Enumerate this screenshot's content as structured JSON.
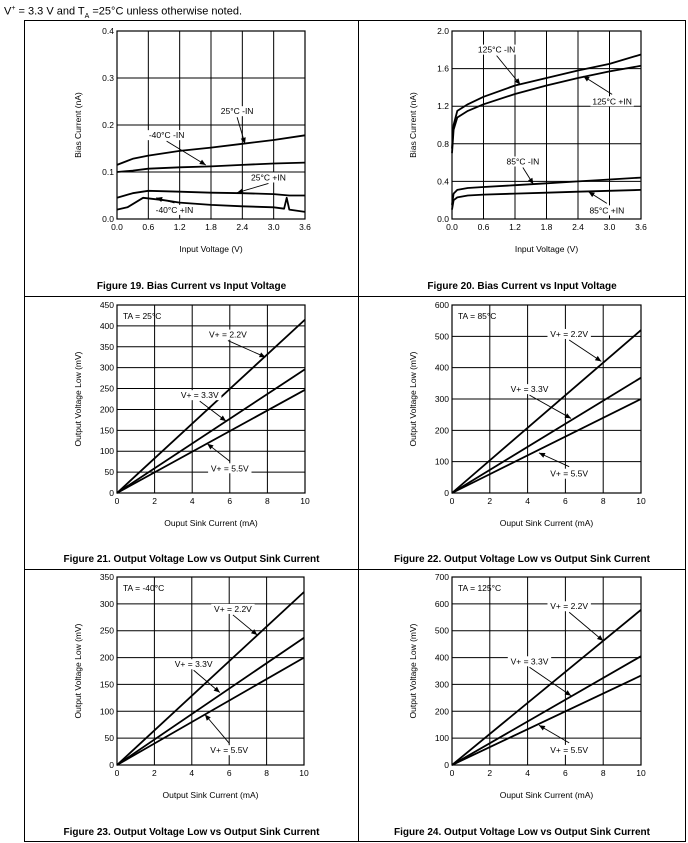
{
  "header": {
    "prefix": "V",
    "sup": "+",
    "mid": " = 3.3 V and T",
    "sub": "A",
    "suffix": " =25°C unless otherwise noted."
  },
  "charts": [
    {
      "id": "fig19",
      "caption": "Figure 19. Bias Current vs Input Voltage",
      "chart_data": {
        "type": "line",
        "title": "",
        "xlabel": "Input Voltage (V)",
        "ylabel": "Bias Current (nA)",
        "xlim": [
          0,
          3.6
        ],
        "ylim": [
          0,
          0.4
        ],
        "xticks": [
          0,
          0.6,
          1.2,
          1.8,
          2.4,
          3.0,
          3.6
        ],
        "xtick_labels": [
          "0.0",
          "0.6",
          "1.2",
          "1.8",
          "2.4",
          "3.0",
          "3.6"
        ],
        "yticks": [
          0,
          0.1,
          0.2,
          0.3,
          0.4
        ],
        "ytick_labels": [
          "0.0",
          "0.1",
          "0.2",
          "0.3",
          "0.4"
        ],
        "grid": true,
        "series": [
          {
            "name": "25°C -IN",
            "x": [
              0,
              0.3,
              0.6,
              1.2,
              1.8,
              2.4,
              3.0,
              3.6
            ],
            "y": [
              0.115,
              0.128,
              0.135,
              0.145,
              0.152,
              0.16,
              0.168,
              0.178
            ]
          },
          {
            "name": "-40°C -IN",
            "x": [
              0,
              0.3,
              0.6,
              1.2,
              1.8,
              2.4,
              3.0,
              3.6
            ],
            "y": [
              0.1,
              0.103,
              0.107,
              0.11,
              0.112,
              0.115,
              0.118,
              0.12
            ]
          },
          {
            "name": "25°C +IN",
            "x": [
              0,
              0.3,
              0.6,
              1.2,
              1.8,
              2.4,
              3.0,
              3.3,
              3.6
            ],
            "y": [
              0.045,
              0.055,
              0.06,
              0.058,
              0.056,
              0.055,
              0.053,
              0.05,
              0.05
            ]
          },
          {
            "name": "-40°C +IN",
            "x": [
              0,
              0.2,
              0.5,
              0.9,
              1.2,
              1.8,
              2.4,
              3.0,
              3.2,
              3.25,
              3.3,
              3.6
            ],
            "y": [
              0.02,
              0.025,
              0.045,
              0.04,
              0.035,
              0.03,
              0.027,
              0.025,
              0.022,
              0.045,
              0.02,
              0.015
            ]
          }
        ],
        "annotations": [
          {
            "text": "25°C -IN",
            "x": 2.3,
            "y": 0.223,
            "ax": 2.45,
            "ay": 0.16
          },
          {
            "text": "-40°C -IN",
            "x": 0.95,
            "y": 0.172,
            "ax": 1.7,
            "ay": 0.115
          },
          {
            "text": "25°C +IN",
            "x": 2.9,
            "y": 0.082,
            "ax": 2.3,
            "ay": 0.056
          },
          {
            "text": "-40°C +IN",
            "x": 1.1,
            "y": 0.013,
            "ax": 0.75,
            "ay": 0.045
          }
        ]
      }
    },
    {
      "id": "fig20",
      "caption": "Figure 20. Bias Current vs Input Voltage",
      "chart_data": {
        "type": "line",
        "title": "",
        "xlabel": "Input Voltage (V)",
        "ylabel": "Bias Current (nA)",
        "xlim": [
          0,
          3.6
        ],
        "ylim": [
          0,
          2.0
        ],
        "xticks": [
          0,
          0.6,
          1.2,
          1.8,
          2.4,
          3.0,
          3.6
        ],
        "xtick_labels": [
          "0.0",
          "0.6",
          "1.2",
          "1.8",
          "2.4",
          "3.0",
          "3.6"
        ],
        "yticks": [
          0,
          0.4,
          0.8,
          1.2,
          1.6,
          2.0
        ],
        "ytick_labels": [
          "0.0",
          "0.4",
          "0.8",
          "1.2",
          "1.6",
          "2.0"
        ],
        "grid": true,
        "series": [
          {
            "name": "125°C -IN",
            "x": [
              0,
              0.03,
              0.1,
              0.3,
              0.6,
              1.2,
              1.8,
              2.4,
              3.0,
              3.6
            ],
            "y": [
              0.75,
              1.0,
              1.15,
              1.22,
              1.3,
              1.42,
              1.5,
              1.58,
              1.65,
              1.75
            ]
          },
          {
            "name": "125°C +IN",
            "x": [
              0,
              0.03,
              0.1,
              0.3,
              0.6,
              1.2,
              1.8,
              2.4,
              3.0,
              3.6
            ],
            "y": [
              0.7,
              0.95,
              1.08,
              1.15,
              1.22,
              1.33,
              1.42,
              1.5,
              1.57,
              1.63
            ]
          },
          {
            "name": "85°C -IN",
            "x": [
              0,
              0.03,
              0.1,
              0.3,
              0.6,
              1.2,
              1.8,
              2.4,
              3.0,
              3.6
            ],
            "y": [
              0.15,
              0.27,
              0.31,
              0.33,
              0.34,
              0.36,
              0.38,
              0.4,
              0.42,
              0.44
            ]
          },
          {
            "name": "85°C +IN",
            "x": [
              0,
              0.03,
              0.1,
              0.3,
              0.6,
              1.2,
              1.8,
              2.4,
              3.0,
              3.6
            ],
            "y": [
              0.1,
              0.2,
              0.23,
              0.25,
              0.26,
              0.27,
              0.28,
              0.29,
              0.3,
              0.31
            ]
          }
        ],
        "annotations": [
          {
            "text": "125°C -IN",
            "x": 0.85,
            "y": 1.77,
            "ax": 1.3,
            "ay": 1.43
          },
          {
            "text": "125°C +IN",
            "x": 3.05,
            "y": 1.22,
            "ax": 2.5,
            "ay": 1.52
          },
          {
            "text": "85°C -IN",
            "x": 1.35,
            "y": 0.58,
            "ax": 1.55,
            "ay": 0.37
          },
          {
            "text": "85°C +IN",
            "x": 2.95,
            "y": 0.06,
            "ax": 2.6,
            "ay": 0.29
          }
        ]
      }
    },
    {
      "id": "fig21",
      "caption": "Figure 21. Output Voltage Low vs Output Sink Current",
      "chart_data": {
        "type": "line",
        "title": "",
        "xlabel": "Ouput Sink Current (mA)",
        "ylabel": "Output Voltage Low (mV)",
        "xlim": [
          0,
          10
        ],
        "ylim": [
          0,
          450
        ],
        "xticks": [
          0,
          2,
          4,
          6,
          8,
          10
        ],
        "xtick_labels": [
          "0",
          "2",
          "4",
          "6",
          "8",
          "10"
        ],
        "yticks": [
          0,
          50,
          100,
          150,
          200,
          250,
          300,
          350,
          400,
          450
        ],
        "ytick_labels": [
          "0",
          "50",
          "100",
          "150",
          "200",
          "250",
          "300",
          "350",
          "400",
          "450"
        ],
        "grid": true,
        "inset_label": "TA = 25°C",
        "series": [
          {
            "name": "V+ = 2.2V",
            "x": [
              0,
              10
            ],
            "y": [
              0,
              415
            ]
          },
          {
            "name": "V+ = 3.3V",
            "x": [
              0,
              10
            ],
            "y": [
              0,
              296
            ]
          },
          {
            "name": "V+ = 5.5V",
            "x": [
              0,
              10
            ],
            "y": [
              0,
              247
            ]
          }
        ],
        "annotations": [
          {
            "text": "V+ = 2.2V",
            "x": 5.9,
            "y": 372,
            "ax": 7.9,
            "ay": 325
          },
          {
            "text": "V+ = 3.3V",
            "x": 4.4,
            "y": 227,
            "ax": 5.8,
            "ay": 172
          },
          {
            "text": "V+ = 5.5V",
            "x": 6.0,
            "y": 52,
            "ax": 4.8,
            "ay": 118
          }
        ]
      }
    },
    {
      "id": "fig22",
      "caption": "Figure 22. Output Voltage Low vs Output Sink Current",
      "chart_data": {
        "type": "line",
        "title": "",
        "xlabel": "Ouput Sink Current (mA)",
        "ylabel": "Output Voltage Low (mV)",
        "xlim": [
          0,
          10
        ],
        "ylim": [
          0,
          600
        ],
        "xticks": [
          0,
          2,
          4,
          6,
          8,
          10
        ],
        "xtick_labels": [
          "0",
          "2",
          "4",
          "6",
          "8",
          "10"
        ],
        "yticks": [
          0,
          100,
          200,
          300,
          400,
          500,
          600
        ],
        "ytick_labels": [
          "0",
          "100",
          "200",
          "300",
          "400",
          "500",
          "600"
        ],
        "grid": true,
        "inset_label": "TA = 85°C",
        "series": [
          {
            "name": "V+ = 2.2V",
            "x": [
              0,
              10
            ],
            "y": [
              0,
              520
            ]
          },
          {
            "name": "V+ = 3.3V",
            "x": [
              0,
              10
            ],
            "y": [
              0,
              368
            ]
          },
          {
            "name": "V+ = 5.5V",
            "x": [
              0,
              10
            ],
            "y": [
              0,
              300
            ]
          }
        ],
        "annotations": [
          {
            "text": "V+ = 2.2V",
            "x": 6.2,
            "y": 498,
            "ax": 7.9,
            "ay": 420
          },
          {
            "text": "V+ = 3.3V",
            "x": 4.1,
            "y": 322,
            "ax": 6.3,
            "ay": 238
          },
          {
            "text": "V+ = 5.5V",
            "x": 6.2,
            "y": 52,
            "ax": 4.6,
            "ay": 128
          }
        ]
      }
    },
    {
      "id": "fig23",
      "caption": "Figure 23. Output Voltage Low vs Output Sink Current",
      "chart_data": {
        "type": "line",
        "title": "",
        "xlabel": "Output Sink Current (mA)",
        "ylabel": "Output Voltage Low (mV)",
        "xlim": [
          0,
          10
        ],
        "ylim": [
          0,
          350
        ],
        "xticks": [
          0,
          2,
          4,
          6,
          8,
          10
        ],
        "xtick_labels": [
          "0",
          "2",
          "4",
          "6",
          "8",
          "10"
        ],
        "yticks": [
          0,
          50,
          100,
          150,
          200,
          250,
          300,
          350
        ],
        "ytick_labels": [
          "0",
          "50",
          "100",
          "150",
          "200",
          "250",
          "300",
          "350"
        ],
        "grid": true,
        "inset_label": "TA = -40°C",
        "series": [
          {
            "name": "V+ = 2.2V",
            "x": [
              0,
              10
            ],
            "y": [
              0,
              322
            ]
          },
          {
            "name": "V+ = 3.3V",
            "x": [
              0,
              10
            ],
            "y": [
              0,
              237
            ]
          },
          {
            "name": "V+ = 5.5V",
            "x": [
              0,
              10
            ],
            "y": [
              0,
              200
            ]
          }
        ],
        "annotations": [
          {
            "text": "V+ = 2.2V",
            "x": 6.2,
            "y": 285,
            "ax": 7.5,
            "ay": 242
          },
          {
            "text": "V+ = 3.3V",
            "x": 4.1,
            "y": 182,
            "ax": 5.5,
            "ay": 135
          },
          {
            "text": "V+ = 5.5V",
            "x": 6.0,
            "y": 22,
            "ax": 4.7,
            "ay": 94
          }
        ]
      }
    },
    {
      "id": "fig24",
      "caption": "Figure 24. Output Voltage Low vs Output Sink Current",
      "chart_data": {
        "type": "line",
        "title": "",
        "xlabel": "Ouput Sink Current (mA)",
        "ylabel": "Output Voltage Low (mV)",
        "xlim": [
          0,
          10
        ],
        "ylim": [
          0,
          700
        ],
        "xticks": [
          0,
          2,
          4,
          6,
          8,
          10
        ],
        "xtick_labels": [
          "0",
          "2",
          "4",
          "6",
          "8",
          "10"
        ],
        "yticks": [
          0,
          100,
          200,
          300,
          400,
          500,
          600,
          700
        ],
        "ytick_labels": [
          "0",
          "100",
          "200",
          "300",
          "400",
          "500",
          "600",
          "700"
        ],
        "grid": true,
        "inset_label": "TA = 125°C",
        "series": [
          {
            "name": "V+ = 2.2V",
            "x": [
              0,
              10
            ],
            "y": [
              0,
              578
            ]
          },
          {
            "name": "V+ = 3.3V",
            "x": [
              0,
              10
            ],
            "y": [
              0,
              405
            ]
          },
          {
            "name": "V+ = 5.5V",
            "x": [
              0,
              10
            ],
            "y": [
              0,
              333
            ]
          }
        ],
        "annotations": [
          {
            "text": "V+ = 2.2V",
            "x": 6.2,
            "y": 580,
            "ax": 8.0,
            "ay": 462
          },
          {
            "text": "V+ = 3.3V",
            "x": 4.1,
            "y": 375,
            "ax": 6.3,
            "ay": 258
          },
          {
            "text": "V+ = 5.5V",
            "x": 6.2,
            "y": 45,
            "ax": 4.6,
            "ay": 148
          }
        ]
      }
    }
  ]
}
